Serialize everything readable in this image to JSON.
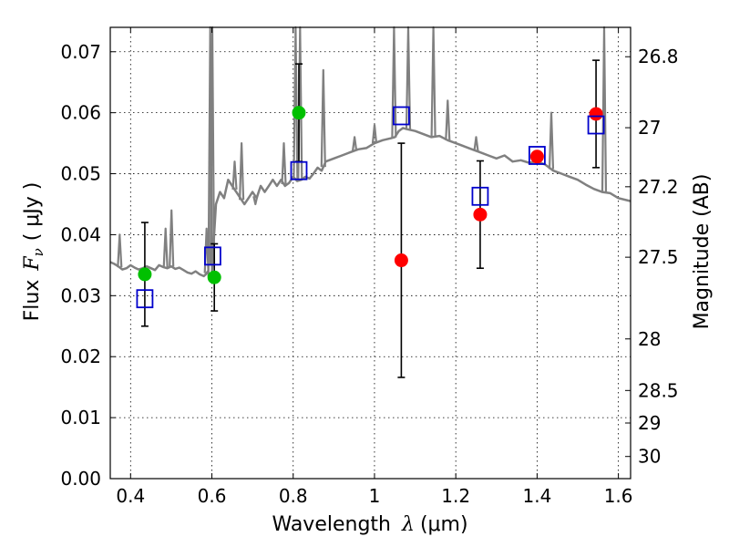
{
  "chart_data": {
    "type": "scatter",
    "xlabel_text": "Wavelength",
    "xlabel_symbol": "λ",
    "xlabel_unit": "(μm)",
    "ylabel_text": "Flux",
    "ylabel_symbol": "F",
    "ylabel_subscript": "ν",
    "ylabel_unit": "( μJy )",
    "y2label": "Magnitude (AB)",
    "xlim": [
      0.35,
      1.63
    ],
    "ylim": [
      0.0,
      0.074
    ],
    "x_ticks": [
      0.4,
      0.6,
      0.8,
      1.0,
      1.2,
      1.4,
      1.6
    ],
    "x_tick_labels": [
      "0.4",
      "0.6",
      "0.8",
      "1",
      "1.2",
      "1.4",
      "1.6"
    ],
    "y_ticks": [
      0.0,
      0.01,
      0.02,
      0.03,
      0.04,
      0.05,
      0.06,
      0.07
    ],
    "y_tick_labels": [
      "0.00",
      "0.01",
      "0.02",
      "0.03",
      "0.04",
      "0.05",
      "0.06",
      "0.07"
    ],
    "y2_ticks": [
      26.8,
      27,
      27.2,
      27.5,
      28,
      28.5,
      29,
      30
    ],
    "y2_tick_labels": [
      "26.8",
      "27",
      "27.2",
      "27.5",
      "28",
      "28.5",
      "29",
      "30"
    ],
    "grid": true,
    "colors": {
      "spectrum": "#808080",
      "green": "#00c000",
      "red": "#ff0000",
      "model": "#0000cc",
      "errorbar": "#000000"
    },
    "series": [
      {
        "kind": "observed",
        "points": [
          {
            "x": 0.435,
            "y": 0.0335,
            "err": 0.0085,
            "color": "green"
          },
          {
            "x": 0.606,
            "y": 0.033,
            "err": 0.0055,
            "color": "green"
          },
          {
            "x": 0.814,
            "y": 0.06,
            "err": 0.008,
            "color": "green"
          },
          {
            "x": 1.066,
            "y": 0.0358,
            "err": 0.0192,
            "color": "red"
          },
          {
            "x": 1.26,
            "y": 0.0433,
            "err": 0.0088,
            "color": "red"
          },
          {
            "x": 1.4,
            "y": 0.0528,
            "err": 0.0,
            "color": "red"
          },
          {
            "x": 1.545,
            "y": 0.0598,
            "err": 0.0088,
            "color": "red"
          }
        ]
      },
      {
        "kind": "model",
        "points": [
          {
            "x": 0.435,
            "y": 0.0295
          },
          {
            "x": 0.602,
            "y": 0.0365
          },
          {
            "x": 0.814,
            "y": 0.0505
          },
          {
            "x": 1.066,
            "y": 0.0595
          },
          {
            "x": 1.26,
            "y": 0.0463
          },
          {
            "x": 1.4,
            "y": 0.053
          },
          {
            "x": 1.545,
            "y": 0.058
          }
        ]
      },
      {
        "kind": "spectrum",
        "x": [
          0.35,
          0.36,
          0.37,
          0.38,
          0.39,
          0.4,
          0.41,
          0.42,
          0.43,
          0.44,
          0.45,
          0.46,
          0.47,
          0.48,
          0.49,
          0.5,
          0.51,
          0.52,
          0.53,
          0.54,
          0.55,
          0.56,
          0.57,
          0.58,
          0.585,
          0.59,
          0.595,
          0.6,
          0.61,
          0.62,
          0.63,
          0.64,
          0.65,
          0.66,
          0.67,
          0.68,
          0.69,
          0.7,
          0.71,
          0.72,
          0.73,
          0.74,
          0.75,
          0.76,
          0.77,
          0.78,
          0.79,
          0.8,
          0.81,
          0.82,
          0.83,
          0.84,
          0.85,
          0.86,
          0.87,
          0.88,
          0.9,
          0.92,
          0.94,
          0.96,
          0.98,
          1.0,
          1.02,
          1.04,
          1.05,
          1.06,
          1.07,
          1.08,
          1.1,
          1.12,
          1.14,
          1.16,
          1.18,
          1.2,
          1.22,
          1.24,
          1.26,
          1.28,
          1.3,
          1.32,
          1.34,
          1.36,
          1.38,
          1.4,
          1.42,
          1.44,
          1.46,
          1.48,
          1.5,
          1.52,
          1.54,
          1.56,
          1.58,
          1.6,
          1.63
        ],
        "y": [
          0.0355,
          0.0352,
          0.0348,
          0.0343,
          0.0345,
          0.035,
          0.0346,
          0.0343,
          0.0345,
          0.0348,
          0.0345,
          0.0342,
          0.035,
          0.0347,
          0.0345,
          0.0348,
          0.0344,
          0.0346,
          0.0342,
          0.0338,
          0.0336,
          0.034,
          0.0335,
          0.0332,
          0.0335,
          0.034,
          0.033,
          0.0338,
          0.045,
          0.047,
          0.046,
          0.049,
          0.048,
          0.047,
          0.046,
          0.045,
          0.046,
          0.047,
          0.046,
          0.048,
          0.047,
          0.048,
          0.049,
          0.048,
          0.049,
          0.048,
          0.0485,
          0.0495,
          0.0488,
          0.049,
          0.0495,
          0.0492,
          0.05,
          0.051,
          0.0505,
          0.052,
          0.0525,
          0.053,
          0.0535,
          0.054,
          0.0542,
          0.055,
          0.0555,
          0.0558,
          0.056,
          0.057,
          0.0575,
          0.0573,
          0.057,
          0.0565,
          0.056,
          0.0562,
          0.0555,
          0.055,
          0.0545,
          0.054,
          0.0535,
          0.053,
          0.0525,
          0.053,
          0.052,
          0.0522,
          0.0518,
          0.052,
          0.0515,
          0.0505,
          0.05,
          0.0495,
          0.049,
          0.0482,
          0.0475,
          0.047,
          0.0468,
          0.046,
          0.0455
        ]
      },
      {
        "kind": "emission_lines",
        "lines": [
          {
            "x": 0.373,
            "peak": 0.04
          },
          {
            "x": 0.486,
            "peak": 0.041
          },
          {
            "x": 0.5007,
            "peak": 0.044
          },
          {
            "x": 0.587,
            "peak": 0.041
          },
          {
            "x": 0.596,
            "peak": 0.074
          },
          {
            "x": 0.601,
            "peak": 0.074
          },
          {
            "x": 0.656,
            "peak": 0.052
          },
          {
            "x": 0.673,
            "peak": 0.055
          },
          {
            "x": 0.707,
            "peak": 0.045
          },
          {
            "x": 0.777,
            "peak": 0.055
          },
          {
            "x": 0.806,
            "peak": 0.074
          },
          {
            "x": 0.817,
            "peak": 0.074
          },
          {
            "x": 0.874,
            "peak": 0.067
          },
          {
            "x": 0.951,
            "peak": 0.056
          },
          {
            "x": 1.0,
            "peak": 0.058
          },
          {
            "x": 1.048,
            "peak": 0.074
          },
          {
            "x": 1.083,
            "peak": 0.074
          },
          {
            "x": 1.145,
            "peak": 0.074
          },
          {
            "x": 1.18,
            "peak": 0.062
          },
          {
            "x": 1.25,
            "peak": 0.056
          },
          {
            "x": 1.435,
            "peak": 0.06
          },
          {
            "x": 1.565,
            "peak": 0.074
          }
        ]
      }
    ]
  }
}
